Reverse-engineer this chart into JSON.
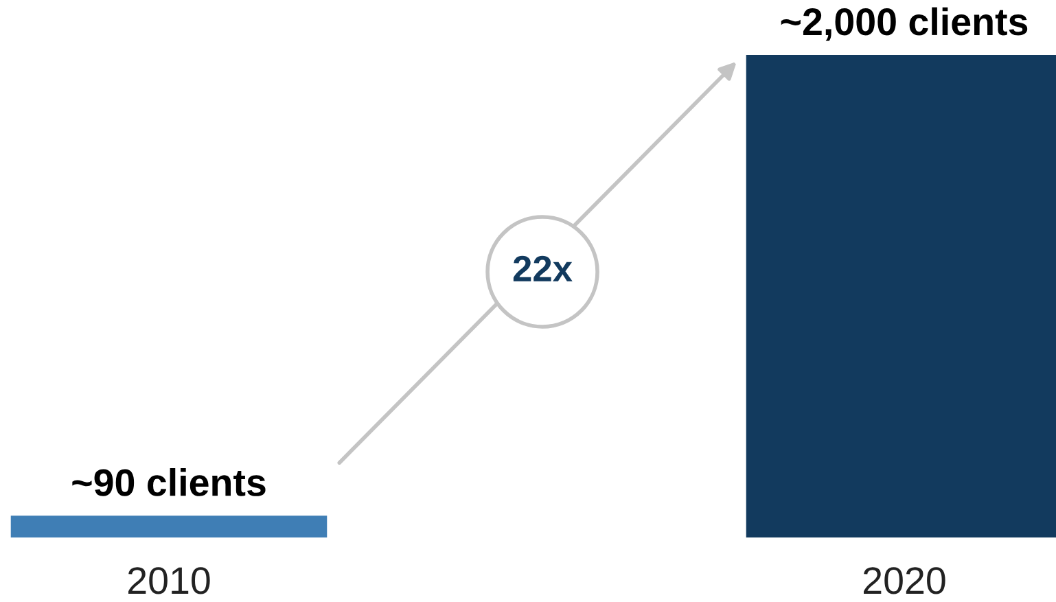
{
  "chart_data": {
    "type": "bar",
    "categories": [
      "2010",
      "2020"
    ],
    "values": [
      90,
      2000
    ],
    "colors": [
      "#3f7eb5",
      "#123a5e"
    ],
    "value_labels": [
      "~90 clients",
      "~2,000 clients"
    ],
    "annotations": [
      "22x"
    ]
  }
}
